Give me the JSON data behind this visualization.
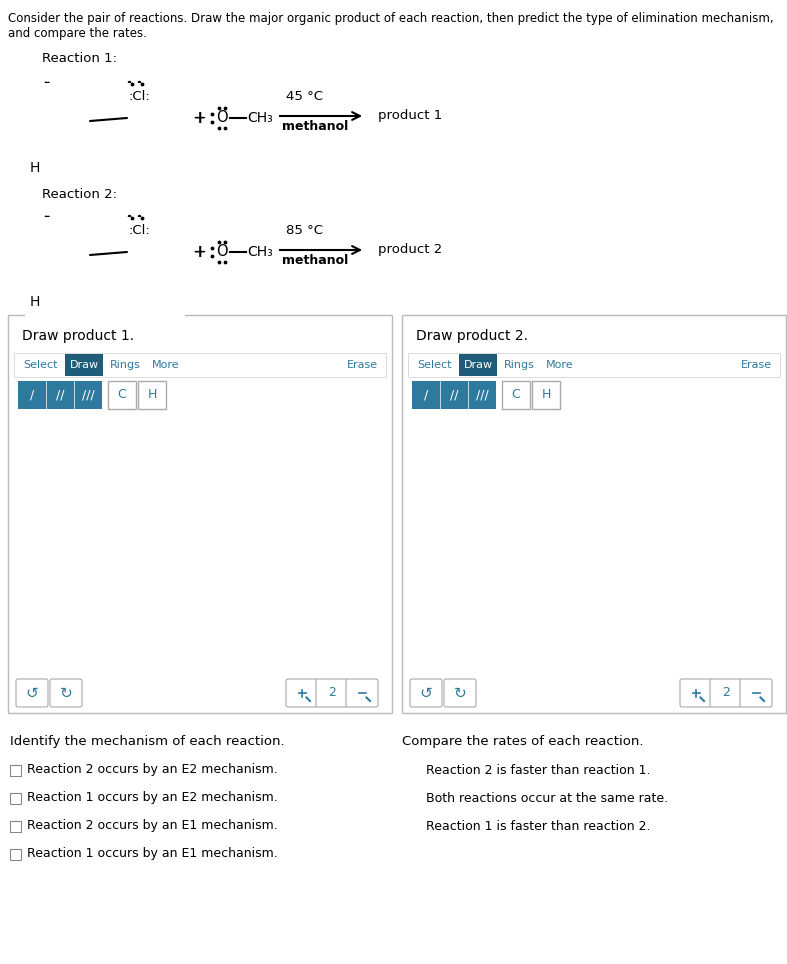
{
  "title_line1": "Consider the pair of reactions. Draw the major organic product of each reaction, then predict the type of elimination mechanism,",
  "title_line2": "and compare the rates.",
  "reaction1_label": "Reaction 1:",
  "reaction2_label": "Reaction 2:",
  "reaction1_temp": "45 °C",
  "reaction2_temp": "85 °C",
  "solvent": "methanol",
  "product1": "product 1",
  "product2": "product 2",
  "draw_product1_title": "Draw product 1.",
  "draw_product2_title": "Draw product 2.",
  "toolbar_tabs": [
    "Select",
    "Draw",
    "Rings",
    "More"
  ],
  "bond_labels": [
    "/",
    "//",
    "///"
  ],
  "atom_labels": [
    "C",
    "H"
  ],
  "mechanism_title": "Identify the mechanism of each reaction.",
  "mechanism_options": [
    "Reaction 2 occurs by an E2 mechanism.",
    "Reaction 1 occurs by an E2 mechanism.",
    "Reaction 2 occurs by an E1 mechanism.",
    "Reaction 1 occurs by an E1 mechanism."
  ],
  "rates_title": "Compare the rates of each reaction.",
  "rates_options": [
    "Reaction 2 is faster than reaction 1.",
    "Both reactions occur at the same rate.",
    "Reaction 1 is faster than reaction 2."
  ],
  "bg_color": "#ffffff",
  "black": "#000000",
  "teal": "#2e7a9e",
  "teal_dark": "#1f5c7a",
  "gray_border": "#999999",
  "light_gray": "#cccccc",
  "panel_border": "#aaaaaa"
}
